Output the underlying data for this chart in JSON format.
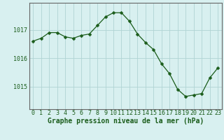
{
  "x": [
    0,
    1,
    2,
    3,
    4,
    5,
    6,
    7,
    8,
    9,
    10,
    11,
    12,
    13,
    14,
    15,
    16,
    17,
    18,
    19,
    20,
    21,
    22,
    23
  ],
  "y": [
    1016.6,
    1016.7,
    1016.9,
    1016.9,
    1016.75,
    1016.7,
    1016.8,
    1016.85,
    1017.15,
    1017.45,
    1017.6,
    1017.6,
    1017.3,
    1016.85,
    1016.55,
    1016.3,
    1015.8,
    1015.45,
    1014.9,
    1014.65,
    1014.7,
    1014.75,
    1015.3,
    1015.65
  ],
  "line_color": "#1a5c1a",
  "marker": "D",
  "marker_size": 2.5,
  "bg_color": "#d8f0f0",
  "grid_color": "#b0d4d4",
  "grid_color_major": "#9ec8c8",
  "ylabel_ticks": [
    1015,
    1016,
    1017
  ],
  "xlabel_ticks": [
    0,
    1,
    2,
    3,
    4,
    5,
    6,
    7,
    8,
    9,
    10,
    11,
    12,
    13,
    14,
    15,
    16,
    17,
    18,
    19,
    20,
    21,
    22,
    23
  ],
  "ylim": [
    1014.2,
    1017.95
  ],
  "xlim": [
    -0.5,
    23.5
  ],
  "xlabel": "Graphe pression niveau de la mer (hPa)",
  "xlabel_color": "#1a5c1a",
  "tick_color": "#1a5c1a",
  "axis_color": "#666666",
  "label_fontsize": 7.0,
  "tick_fontsize": 6.0
}
